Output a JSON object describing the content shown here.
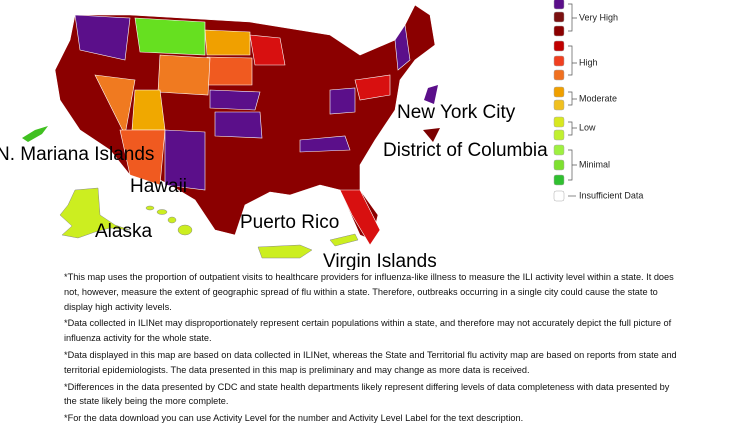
{
  "map": {
    "labels": [
      "New York City",
      "District of Columbia",
      "N. Mariana Islands",
      "Hawaii",
      "Alaska",
      "Puerto Rico",
      "Virgin Islands"
    ]
  },
  "legend": {
    "items": [
      "Very High",
      "High",
      "Moderate",
      "Low",
      "Minimal",
      "Insufficient Data"
    ]
  },
  "footnotes": [
    "*This map uses the proportion of outpatient visits to healthcare providers for influenza-like illness to measure the ILI activity level within a state. It does not, however, measure the extent of geographic spread of flu within a state. Therefore, outbreaks occurring in a single city could cause the state to display high activity levels.",
    "*Data collected in ILINet may disproportionately represent certain populations within a state, and therefore may not accurately depict the full picture of influenza activity for the whole state.",
    "*Data displayed in this map are based on data collected in ILINet, whereas the State and Territorial flu activity map are based on reports from state and territorial epidemiologists. The data presented in this map is preliminary and may change as more data is received.",
    "*Differences in the data presented by CDC and state health departments likely represent differing levels of data completeness with data presented by the state likely being the more complete.",
    "*For the data download you can use Activity Level for the number and Activity Level Label for the text description."
  ]
}
